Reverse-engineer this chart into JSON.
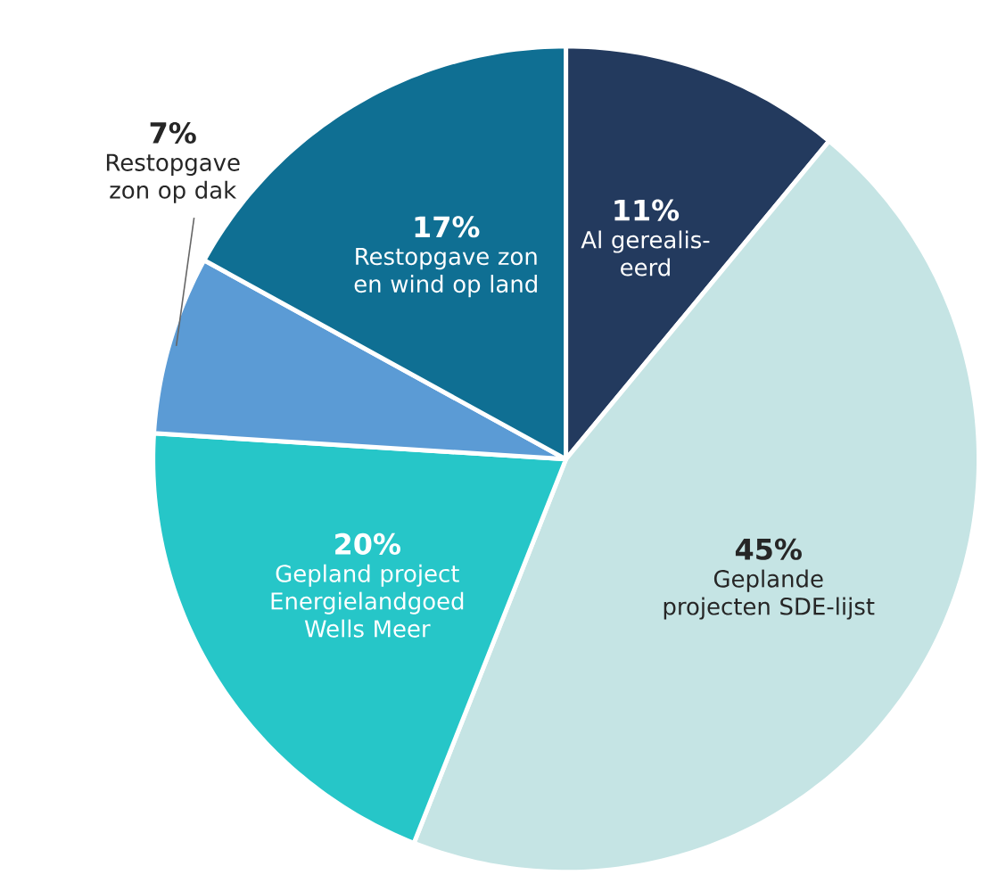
{
  "chart_data": {
    "type": "pie",
    "categories": [
      "Al gerealis-eerd",
      "Geplande projecten SDE-lijst",
      "Gepland project Energielandgoed Wells Meer",
      "Restopgave zon op dak",
      "Restopgave zon en wind op land"
    ],
    "values": [
      11,
      45,
      20,
      7,
      17
    ],
    "colors": [
      "#233a5e",
      "#c5e4e4",
      "#26c6c8",
      "#5b9bd5",
      "#0f6f93"
    ],
    "value_labels": [
      "11%",
      "45%",
      "20%",
      "7%",
      "17%"
    ]
  }
}
